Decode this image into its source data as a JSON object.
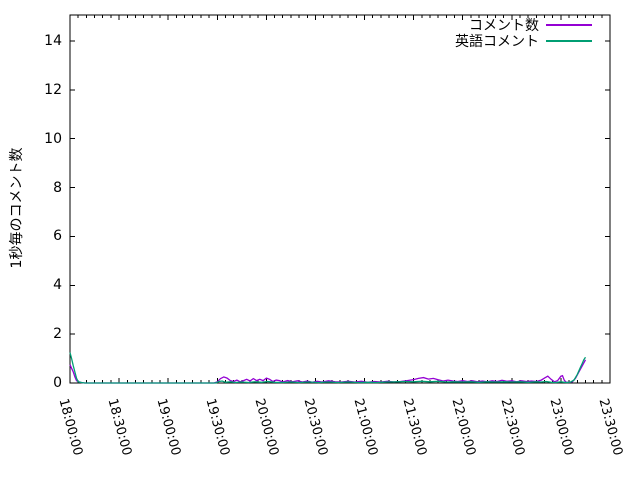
{
  "chart_data": {
    "type": "line",
    "title": "",
    "xlabel": "",
    "ylabel": "1秒毎のコメント数",
    "ylim": [
      0,
      15.06
    ],
    "yticks": [
      0,
      2,
      4,
      6,
      8,
      10,
      12,
      14
    ],
    "x_minutes_range": [
      0,
      330
    ],
    "x_major_tick_interval_minutes": 30,
    "x_minor_tick_interval_minutes": 5,
    "x_tick_labels": [
      "18:00:00",
      "18:30:00",
      "19:00:00",
      "19:30:00",
      "20:00:00",
      "20:30:00",
      "21:00:00",
      "21:30:00",
      "22:00:00",
      "22:30:00",
      "23:00:00",
      "23:30:00"
    ],
    "grid": false,
    "legend_position": "top-right-inside",
    "axis_color": "#000000",
    "background_color": "#ffffff",
    "series": [
      {
        "name": "コメント数",
        "color": "#9400d3",
        "points": [
          [
            0,
            0.75
          ],
          [
            1,
            0.6
          ],
          [
            2,
            0.45
          ],
          [
            3,
            0.25
          ],
          [
            4,
            0.1
          ],
          [
            5,
            0.05
          ],
          [
            7,
            0.02
          ],
          [
            9,
            0
          ],
          [
            30,
            0
          ],
          [
            60,
            0
          ],
          [
            88,
            0
          ],
          [
            90,
            0.05
          ],
          [
            92,
            0.18
          ],
          [
            94,
            0.25
          ],
          [
            96,
            0.2
          ],
          [
            98,
            0.1
          ],
          [
            100,
            0.06
          ],
          [
            102,
            0.12
          ],
          [
            104,
            0.05
          ],
          [
            106,
            0.1
          ],
          [
            108,
            0.15
          ],
          [
            110,
            0.08
          ],
          [
            112,
            0.18
          ],
          [
            114,
            0.1
          ],
          [
            116,
            0.15
          ],
          [
            118,
            0.1
          ],
          [
            120,
            0.2
          ],
          [
            122,
            0.15
          ],
          [
            124,
            0.06
          ],
          [
            126,
            0.12
          ],
          [
            128,
            0.1
          ],
          [
            130,
            0.04
          ],
          [
            133,
            0.1
          ],
          [
            136,
            0.05
          ],
          [
            139,
            0.09
          ],
          [
            142,
            0.04
          ],
          [
            145,
            0.08
          ],
          [
            148,
            0.03
          ],
          [
            151,
            0.07
          ],
          [
            154,
            0.04
          ],
          [
            158,
            0.09
          ],
          [
            162,
            0.05
          ],
          [
            166,
            0.04
          ],
          [
            170,
            0.07
          ],
          [
            174,
            0.04
          ],
          [
            178,
            0.07
          ],
          [
            182,
            0.03
          ],
          [
            186,
            0.06
          ],
          [
            190,
            0.04
          ],
          [
            194,
            0.07
          ],
          [
            198,
            0.04
          ],
          [
            202,
            0.06
          ],
          [
            206,
            0.1
          ],
          [
            210,
            0.14
          ],
          [
            213,
            0.19
          ],
          [
            216,
            0.22
          ],
          [
            219,
            0.16
          ],
          [
            222,
            0.19
          ],
          [
            225,
            0.13
          ],
          [
            228,
            0.08
          ],
          [
            231,
            0.12
          ],
          [
            234,
            0.08
          ],
          [
            237,
            0.06
          ],
          [
            240,
            0.1
          ],
          [
            243,
            0.06
          ],
          [
            246,
            0.09
          ],
          [
            249,
            0.05
          ],
          [
            252,
            0.08
          ],
          [
            255,
            0.05
          ],
          [
            258,
            0.09
          ],
          [
            261,
            0.06
          ],
          [
            264,
            0.11
          ],
          [
            267,
            0.07
          ],
          [
            270,
            0.09
          ],
          [
            273,
            0.05
          ],
          [
            276,
            0.09
          ],
          [
            279,
            0.06
          ],
          [
            282,
            0.08
          ],
          [
            285,
            0.06
          ],
          [
            288,
            0.12
          ],
          [
            290,
            0.2
          ],
          [
            292,
            0.28
          ],
          [
            294,
            0.15
          ],
          [
            296,
            0.05
          ],
          [
            298,
            0.1
          ],
          [
            300,
            0.28
          ],
          [
            301,
            0.3
          ],
          [
            302,
            0.12
          ],
          [
            303,
            0.04
          ],
          [
            305,
            0.02
          ],
          [
            307,
            0.05
          ],
          [
            309,
            0.2
          ],
          [
            311,
            0.45
          ],
          [
            313,
            0.7
          ],
          [
            315,
            0.95
          ]
        ]
      },
      {
        "name": "英語コメント",
        "color": "#009e73",
        "points": [
          [
            0,
            1.25
          ],
          [
            1,
            1.0
          ],
          [
            2,
            0.7
          ],
          [
            3,
            0.45
          ],
          [
            4,
            0.2
          ],
          [
            5,
            0.05
          ],
          [
            7,
            0.02
          ],
          [
            9,
            0
          ],
          [
            30,
            0
          ],
          [
            60,
            0
          ],
          [
            89,
            0
          ],
          [
            91,
            0.06
          ],
          [
            93,
            0.08
          ],
          [
            95,
            0.03
          ],
          [
            98,
            0.05
          ],
          [
            101,
            0.02
          ],
          [
            105,
            0.04
          ],
          [
            109,
            0.02
          ],
          [
            113,
            0.05
          ],
          [
            117,
            0.03
          ],
          [
            121,
            0.06
          ],
          [
            125,
            0.03
          ],
          [
            130,
            0.02
          ],
          [
            135,
            0.04
          ],
          [
            140,
            0.02
          ],
          [
            146,
            0.04
          ],
          [
            152,
            0.02
          ],
          [
            158,
            0.04
          ],
          [
            164,
            0.02
          ],
          [
            170,
            0.04
          ],
          [
            176,
            0.02
          ],
          [
            182,
            0.03
          ],
          [
            188,
            0.02
          ],
          [
            194,
            0.04
          ],
          [
            200,
            0.05
          ],
          [
            205,
            0.06
          ],
          [
            210,
            0.05
          ],
          [
            215,
            0.07
          ],
          [
            220,
            0.05
          ],
          [
            225,
            0.07
          ],
          [
            230,
            0.04
          ],
          [
            235,
            0.05
          ],
          [
            240,
            0.04
          ],
          [
            245,
            0.05
          ],
          [
            250,
            0.03
          ],
          [
            255,
            0.05
          ],
          [
            260,
            0.04
          ],
          [
            265,
            0.05
          ],
          [
            270,
            0.04
          ],
          [
            275,
            0.05
          ],
          [
            280,
            0.03
          ],
          [
            285,
            0.05
          ],
          [
            288,
            0.04
          ],
          [
            291,
            0.06
          ],
          [
            294,
            0.03
          ],
          [
            297,
            0.02
          ],
          [
            300,
            0.05
          ],
          [
            302,
            0.03
          ],
          [
            304,
            0.02
          ],
          [
            306,
            0.04
          ],
          [
            308,
            0.12
          ],
          [
            310,
            0.35
          ],
          [
            311,
            0.5
          ],
          [
            312,
            0.65
          ],
          [
            313,
            0.8
          ],
          [
            314,
            0.95
          ],
          [
            315,
            1.05
          ]
        ]
      }
    ]
  }
}
